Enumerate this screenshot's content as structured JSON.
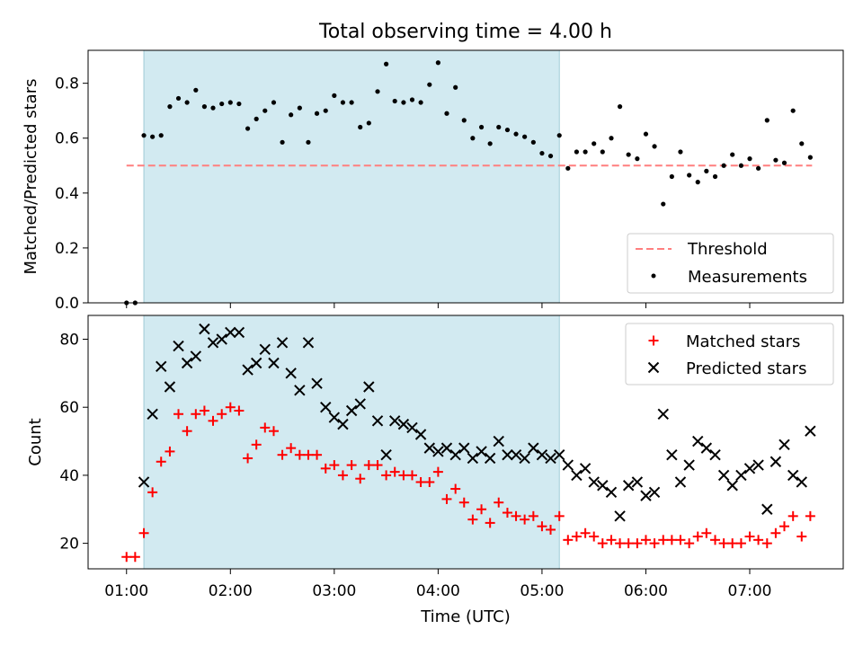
{
  "figure": {
    "title": "Total observing time = 4.00 h"
  },
  "chart_data": [
    {
      "type": "scatter",
      "panel": "top",
      "ylabel": "Matched/Predicted stars",
      "xlabel": "",
      "ylim": [
        0,
        0.92
      ],
      "yticks": [
        "0.0",
        "0.2",
        "0.4",
        "0.6",
        "0.8"
      ],
      "ytick_values": [
        0,
        0.2,
        0.4,
        0.6,
        0.8
      ],
      "xlim_hours": [
        0.63,
        7.9
      ],
      "shaded_span_hours": [
        1.167,
        5.167
      ],
      "shade_color": "#add8e6",
      "legend": {
        "placement": "lower-right",
        "entries": [
          "Threshold",
          "Measurements"
        ]
      },
      "threshold": {
        "name": "Threshold",
        "value": 0.5,
        "x_range_hours": [
          1.0,
          7.6
        ],
        "color": "#ff7f7f"
      },
      "series": [
        {
          "name": "Measurements",
          "color": "#000000",
          "x_hours": [
            1.0,
            1.083,
            1.167,
            1.25,
            1.333,
            1.417,
            1.5,
            1.583,
            1.667,
            1.75,
            1.833,
            1.917,
            2.0,
            2.083,
            2.167,
            2.25,
            2.333,
            2.417,
            2.5,
            2.583,
            2.667,
            2.75,
            2.833,
            2.917,
            3.0,
            3.083,
            3.167,
            3.25,
            3.333,
            3.417,
            3.5,
            3.583,
            3.667,
            3.75,
            3.833,
            3.917,
            4.0,
            4.083,
            4.167,
            4.25,
            4.333,
            4.417,
            4.5,
            4.583,
            4.667,
            4.75,
            4.833,
            4.917,
            5.0,
            5.083,
            5.167,
            5.25,
            5.333,
            5.417,
            5.5,
            5.583,
            5.667,
            5.75,
            5.833,
            5.917,
            6.0,
            6.083,
            6.167,
            6.25,
            6.333,
            6.417,
            6.5,
            6.583,
            6.667,
            6.75,
            6.833,
            6.917,
            7.0,
            7.083,
            7.167,
            7.25,
            7.333,
            7.417,
            7.5,
            7.583
          ],
          "values": [
            0.0,
            0.0,
            0.61,
            0.605,
            0.61,
            0.715,
            0.745,
            0.73,
            0.775,
            0.715,
            0.71,
            0.725,
            0.73,
            0.725,
            0.635,
            0.67,
            0.7,
            0.73,
            0.585,
            0.685,
            0.71,
            0.585,
            0.69,
            0.7,
            0.755,
            0.73,
            0.73,
            0.64,
            0.655,
            0.77,
            0.87,
            0.735,
            0.73,
            0.74,
            0.73,
            0.795,
            0.875,
            0.69,
            0.785,
            0.665,
            0.6,
            0.64,
            0.58,
            0.64,
            0.63,
            0.615,
            0.605,
            0.585,
            0.545,
            0.535,
            0.61,
            0.49,
            0.55,
            0.55,
            0.58,
            0.55,
            0.6,
            0.715,
            0.54,
            0.525,
            0.615,
            0.57,
            0.36,
            0.46,
            0.55,
            0.465,
            0.44,
            0.48,
            0.46,
            0.5,
            0.54,
            0.5,
            0.525,
            0.49,
            0.665,
            0.52,
            0.51,
            0.7,
            0.58,
            0.53
          ]
        }
      ]
    },
    {
      "type": "scatter",
      "panel": "bottom",
      "ylabel": "Count",
      "xlabel": "Time (UTC)",
      "ylim": [
        12.5,
        87
      ],
      "yticks": [
        "20",
        "40",
        "60",
        "80"
      ],
      "ytick_values": [
        20,
        40,
        60,
        80
      ],
      "xticks": [
        "01:00",
        "02:00",
        "03:00",
        "04:00",
        "05:00",
        "06:00",
        "07:00"
      ],
      "xtick_values_hours": [
        1,
        2,
        3,
        4,
        5,
        6,
        7
      ],
      "xlim_hours": [
        0.63,
        7.9
      ],
      "shaded_span_hours": [
        1.167,
        5.167
      ],
      "legend": {
        "placement": "top-right",
        "entries": [
          "Matched stars",
          "Predicted stars"
        ]
      },
      "series": [
        {
          "name": "Matched stars",
          "marker": "plus",
          "color": "#ff0000",
          "x_hours": [
            1.0,
            1.083,
            1.167,
            1.25,
            1.333,
            1.417,
            1.5,
            1.583,
            1.667,
            1.75,
            1.833,
            1.917,
            2.0,
            2.083,
            2.167,
            2.25,
            2.333,
            2.417,
            2.5,
            2.583,
            2.667,
            2.75,
            2.833,
            2.917,
            3.0,
            3.083,
            3.167,
            3.25,
            3.333,
            3.417,
            3.5,
            3.583,
            3.667,
            3.75,
            3.833,
            3.917,
            4.0,
            4.083,
            4.167,
            4.25,
            4.333,
            4.417,
            4.5,
            4.583,
            4.667,
            4.75,
            4.833,
            4.917,
            5.0,
            5.083,
            5.167,
            5.25,
            5.333,
            5.417,
            5.5,
            5.583,
            5.667,
            5.75,
            5.833,
            5.917,
            6.0,
            6.083,
            6.167,
            6.25,
            6.333,
            6.417,
            6.5,
            6.583,
            6.667,
            6.75,
            6.833,
            6.917,
            7.0,
            7.083,
            7.167,
            7.25,
            7.333,
            7.417,
            7.5,
            7.583
          ],
          "values": [
            16,
            16,
            23,
            35,
            44,
            47,
            58,
            53,
            58,
            59,
            56,
            58,
            60,
            59,
            45,
            49,
            54,
            53,
            46,
            48,
            46,
            46,
            46,
            42,
            43,
            40,
            43,
            39,
            43,
            43,
            40,
            41,
            40,
            40,
            38,
            38,
            41,
            33,
            36,
            32,
            27,
            30,
            26,
            32,
            29,
            28,
            27,
            28,
            25,
            24,
            28,
            21,
            22,
            23,
            22,
            20,
            21,
            20,
            20,
            20,
            21,
            20,
            21,
            21,
            21,
            20,
            22,
            23,
            21,
            20,
            20,
            20,
            22,
            21,
            20,
            23,
            25,
            28,
            22,
            28
          ]
        },
        {
          "name": "Predicted stars",
          "marker": "x",
          "color": "#000000",
          "x_hours": [
            1.167,
            1.25,
            1.333,
            1.417,
            1.5,
            1.583,
            1.667,
            1.75,
            1.833,
            1.917,
            2.0,
            2.083,
            2.167,
            2.25,
            2.333,
            2.417,
            2.5,
            2.583,
            2.667,
            2.75,
            2.833,
            2.917,
            3.0,
            3.083,
            3.167,
            3.25,
            3.333,
            3.417,
            3.5,
            3.583,
            3.667,
            3.75,
            3.833,
            3.917,
            4.0,
            4.083,
            4.167,
            4.25,
            4.333,
            4.417,
            4.5,
            4.583,
            4.667,
            4.75,
            4.833,
            4.917,
            5.0,
            5.083,
            5.167,
            5.25,
            5.333,
            5.417,
            5.5,
            5.583,
            5.667,
            5.75,
            5.833,
            5.917,
            6.0,
            6.083,
            6.167,
            6.25,
            6.333,
            6.417,
            6.5,
            6.583,
            6.667,
            6.75,
            6.833,
            6.917,
            7.0,
            7.083,
            7.167,
            7.25,
            7.333,
            7.417,
            7.5,
            7.583
          ],
          "values": [
            38,
            58,
            72,
            66,
            78,
            73,
            75,
            83,
            79,
            80,
            82,
            82,
            71,
            73,
            77,
            73,
            79,
            70,
            65,
            79,
            67,
            60,
            57,
            55,
            59,
            61,
            66,
            56,
            46,
            56,
            55,
            54,
            52,
            48,
            47,
            48,
            46,
            48,
            45,
            47,
            45,
            50,
            46,
            46,
            45,
            48,
            46,
            45,
            46,
            43,
            40,
            42,
            38,
            37,
            35,
            28,
            37,
            38,
            34,
            35,
            58,
            46,
            38,
            43,
            50,
            48,
            46,
            40,
            37,
            40,
            42,
            43,
            30,
            44,
            49,
            40,
            38,
            53
          ]
        }
      ]
    }
  ]
}
